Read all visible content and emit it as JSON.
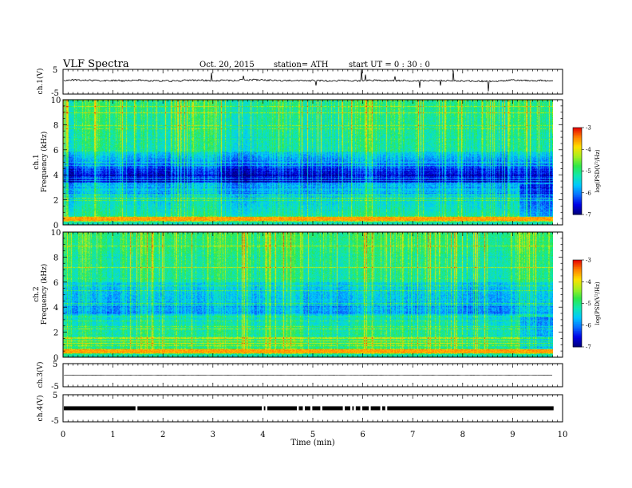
{
  "header": {
    "title": "VLF  Spectra",
    "date": "Oct. 20, 2015",
    "station": "station= ATH",
    "start": "start  UT =   0 : 30 : 0"
  },
  "colors": {
    "spectrogram_scale": [
      "#00007a",
      "#0000e6",
      "#0a6cff",
      "#00c8ff",
      "#10e8b0",
      "#2ee84a",
      "#a8f020",
      "#ffe000",
      "#ff8000",
      "#e60000",
      "#ffffff"
    ]
  },
  "chart_data": {
    "type": "heatmap",
    "xlabel": "Time  (min)",
    "xlim": [
      0,
      10
    ],
    "x_ticks": [
      "0",
      "1",
      "2",
      "3",
      "4",
      "5",
      "6",
      "7",
      "8",
      "9",
      "10"
    ],
    "panels": [
      {
        "id": "ch1-waveform",
        "type": "line",
        "ylabel": "ch.1(V)",
        "ylim": [
          -5,
          5
        ],
        "y_ticks": [
          "5",
          "-5"
        ],
        "baseline": 0.5
      },
      {
        "id": "ch1-spectrogram",
        "type": "heatmap",
        "ylabel": "Frequency  (kHz)",
        "channel_label": "ch.1",
        "ylim": [
          0,
          10
        ],
        "y_ticks": [
          "0",
          "2",
          "4",
          "6",
          "8",
          "10"
        ],
        "data_end_min": 9.82
      },
      {
        "id": "ch2-spectrogram",
        "type": "heatmap",
        "ylabel": "Frequency  (kHz)",
        "channel_label": "ch.2",
        "ylim": [
          0,
          10
        ],
        "y_ticks": [
          "0",
          "2",
          "4",
          "6",
          "8",
          "10"
        ],
        "data_end_min": 9.82
      },
      {
        "id": "ch3-waveform",
        "type": "line",
        "ylabel": "ch.3(V)",
        "ylim": [
          -5,
          5
        ],
        "y_ticks": [
          "5",
          "-5"
        ],
        "baseline": 0
      },
      {
        "id": "ch4-waveform",
        "type": "line",
        "ylabel": "ch.4(V)",
        "ylim": [
          -5,
          5
        ],
        "y_ticks": [
          "5",
          "-5"
        ],
        "baseline": 0
      }
    ],
    "colorbar": {
      "label": "log(PSD(V²/Hz)",
      "range": [
        -7,
        -3
      ],
      "ticks": [
        "-3",
        "-4",
        "-5",
        "-6",
        "-7"
      ]
    }
  }
}
